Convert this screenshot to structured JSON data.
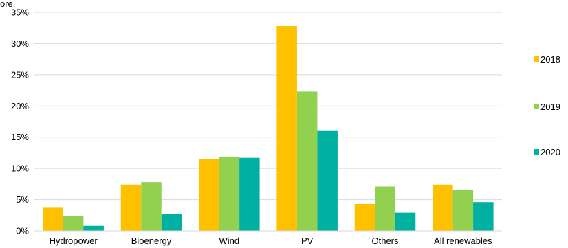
{
  "chart_data": {
    "type": "bar",
    "title": "ore.",
    "categories": [
      "Hydropower",
      "Bioenergy",
      "Wind",
      "PV",
      "Others",
      "All renewables"
    ],
    "series": [
      {
        "name": "2018",
        "color": "#ffc000",
        "values": [
          3.7,
          7.4,
          11.5,
          32.8,
          4.3,
          7.4
        ]
      },
      {
        "name": "2019",
        "color": "#92d050",
        "values": [
          2.4,
          7.8,
          11.9,
          22.3,
          7.1,
          6.5
        ]
      },
      {
        "name": "2020",
        "color": "#00b0a0",
        "values": [
          0.8,
          2.7,
          11.7,
          16.1,
          2.9,
          4.6
        ]
      }
    ],
    "yticks": [
      "0%",
      "5%",
      "10%",
      "15%",
      "20%",
      "25%",
      "30%",
      "35%"
    ],
    "ylim": [
      0,
      35
    ],
    "xlabel": "",
    "ylabel": "",
    "grid": true,
    "legend_position": "right"
  }
}
